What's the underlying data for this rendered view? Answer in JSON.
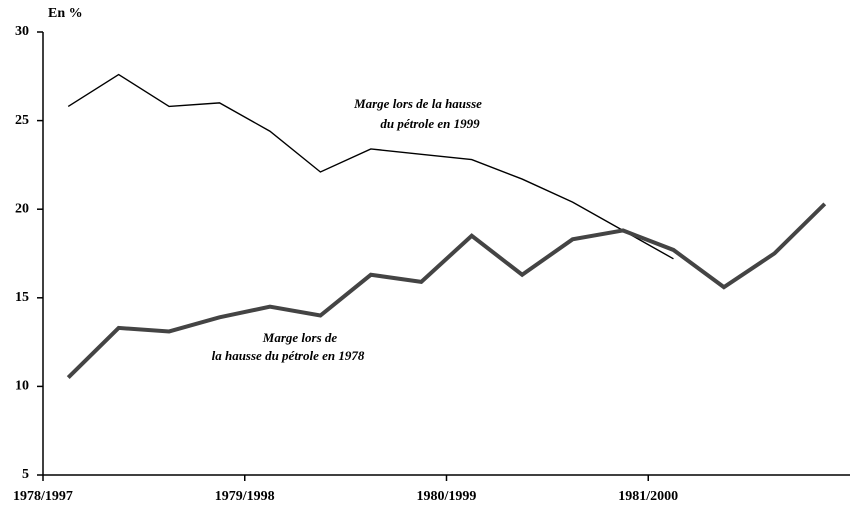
{
  "chart_data": {
    "type": "line",
    "y_label": "En %",
    "annotations": [
      [
        "Marge lors de la hausse",
        "du pétrole en 1999"
      ],
      [
        "Marge lors de",
        "la hausse du pétrole en 1978"
      ]
    ],
    "x": [
      0.5,
      1.5,
      2.5,
      3.5,
      4.5,
      5.5,
      6.5,
      7.5,
      8.5,
      9.5,
      10.5,
      11.5,
      12.5,
      13.5,
      14.5,
      15.5
    ],
    "xlim": [
      0,
      16
    ],
    "xticks": [
      {
        "value": 0,
        "label": "1978/1997"
      },
      {
        "value": 4,
        "label": "1979/1998"
      },
      {
        "value": 8,
        "label": "1980/1999"
      },
      {
        "value": 12,
        "label": "1981/2000"
      }
    ],
    "ylim": [
      5,
      30
    ],
    "yticks": [
      5,
      10,
      15,
      20,
      25,
      30
    ],
    "series": [
      {
        "color": "#000000",
        "width": 1.4,
        "values": [
          25.8,
          27.6,
          25.8,
          26.0,
          24.4,
          22.1,
          23.4,
          23.1,
          22.8,
          21.7,
          20.4,
          18.8,
          17.2,
          null,
          null,
          null
        ]
      },
      {
        "color": "#444444",
        "width": 4,
        "values": [
          10.5,
          13.3,
          13.1,
          13.9,
          14.5,
          14.0,
          16.3,
          15.9,
          18.5,
          16.3,
          18.3,
          18.8,
          17.7,
          15.6,
          17.5,
          20.3
        ]
      }
    ]
  }
}
